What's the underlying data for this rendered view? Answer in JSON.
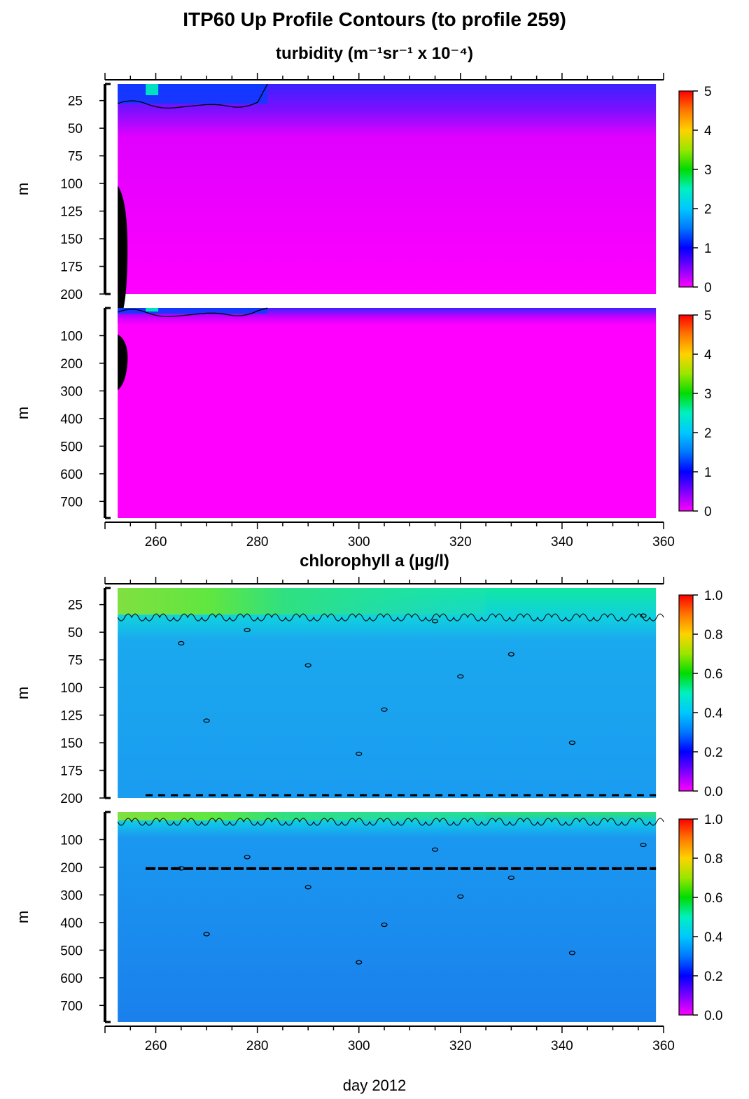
{
  "title": "ITP60 Up Profile Contours (to profile 259)",
  "sections": [
    {
      "title": "turbidity (m⁻¹sr⁻¹ x 10⁻⁴)"
    },
    {
      "title": "chlorophyll a (µg/l)"
    }
  ],
  "x_label": "day 2012",
  "chart_data": [
    {
      "type": "heatmap",
      "variable": "turbidity",
      "panel": "upper",
      "ylabel": "m",
      "ylim": [
        200,
        10
      ],
      "yticks": [
        25,
        50,
        75,
        100,
        125,
        150,
        175,
        200
      ],
      "xlim": [
        250,
        360
      ],
      "xticks": [
        260,
        280,
        300,
        320,
        340,
        360
      ],
      "data_x_range": [
        252.5,
        358.5
      ],
      "colorbar": {
        "range": [
          0,
          5
        ],
        "ticks": [
          "0",
          "1",
          "2",
          "3",
          "4",
          "5"
        ]
      }
    },
    {
      "type": "heatmap",
      "variable": "turbidity",
      "panel": "full",
      "ylabel": "m",
      "ylim": [
        760,
        0
      ],
      "yticks": [
        100,
        200,
        300,
        400,
        500,
        600,
        700
      ],
      "xlim": [
        250,
        360
      ],
      "xticks": [
        260,
        280,
        300,
        320,
        340,
        360
      ],
      "data_x_range": [
        252.5,
        358.5
      ],
      "colorbar": {
        "range": [
          0,
          5
        ],
        "ticks": [
          "0",
          "1",
          "2",
          "3",
          "4",
          "5"
        ]
      }
    },
    {
      "type": "heatmap",
      "variable": "chlorophyll a",
      "panel": "upper",
      "ylabel": "m",
      "ylim": [
        200,
        10
      ],
      "yticks": [
        25,
        50,
        75,
        100,
        125,
        150,
        175,
        200
      ],
      "xlim": [
        250,
        360
      ],
      "xticks": [
        260,
        280,
        300,
        320,
        340,
        360
      ],
      "data_x_range": [
        252.5,
        358.5
      ],
      "colorbar": {
        "range": [
          0,
          1
        ],
        "ticks": [
          "0.0",
          "0.2",
          "0.4",
          "0.6",
          "0.8",
          "1.0"
        ]
      }
    },
    {
      "type": "heatmap",
      "variable": "chlorophyll a",
      "panel": "full",
      "ylabel": "m",
      "ylim": [
        760,
        0
      ],
      "yticks": [
        100,
        200,
        300,
        400,
        500,
        600,
        700
      ],
      "xlim": [
        250,
        360
      ],
      "xticks": [
        260,
        280,
        300,
        320,
        340,
        360
      ],
      "data_x_range": [
        252.5,
        358.5
      ],
      "colorbar": {
        "range": [
          0,
          1
        ],
        "ticks": [
          "0.0",
          "0.2",
          "0.4",
          "0.6",
          "0.8",
          "1.0"
        ]
      }
    }
  ]
}
